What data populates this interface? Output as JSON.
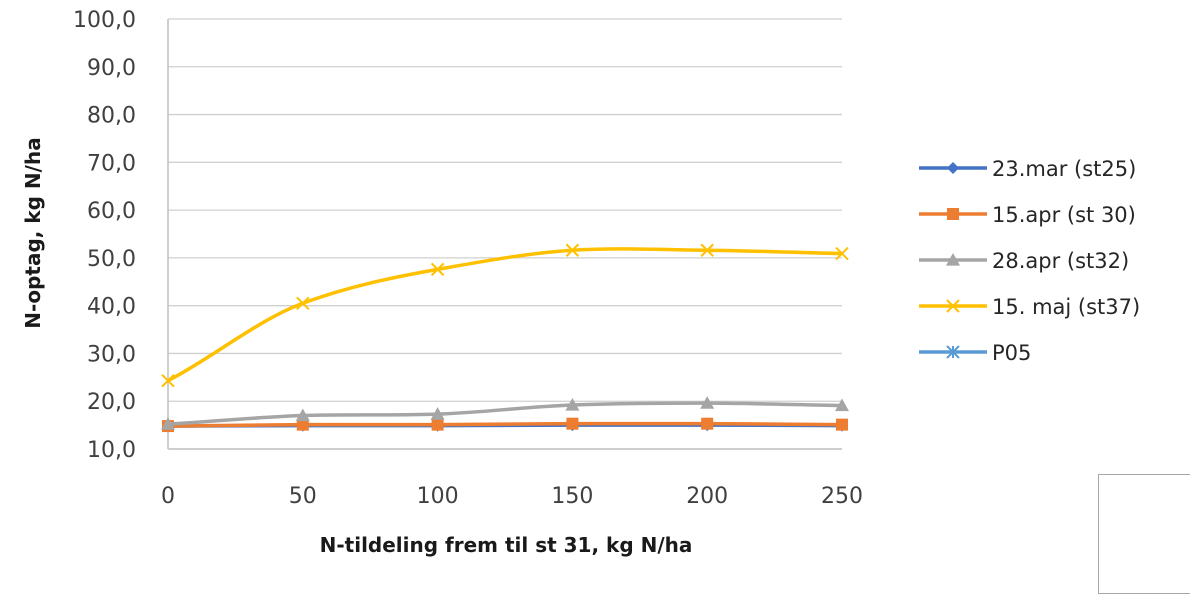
{
  "chart_data": {
    "type": "line",
    "title": "",
    "xlabel": "N-tildeling frem til st 31, kg N/ha",
    "ylabel": "N-optag, kg N/ha",
    "x": [
      0,
      50,
      100,
      150,
      200,
      250
    ],
    "x_tick_labels": [
      "0",
      "50",
      "100",
      "150",
      "200",
      "250"
    ],
    "ylim": [
      10,
      100
    ],
    "y_tick_labels": [
      "10,0",
      "20,0",
      "30,0",
      "40,0",
      "50,0",
      "60,0",
      "70,0",
      "80,0",
      "90,0",
      "100,0"
    ],
    "grid": "horizontal",
    "legend_position": "right",
    "series": [
      {
        "name": "23.mar (st25)",
        "color": "#4472c4",
        "marker": "diamond",
        "values": [
          14.8,
          14.9,
          14.9,
          15.0,
          15.0,
          14.9
        ]
      },
      {
        "name": "15.apr (st 30)",
        "color": "#ed7d31",
        "marker": "square",
        "values": [
          14.8,
          15.1,
          15.1,
          15.3,
          15.3,
          15.1
        ]
      },
      {
        "name": "28.apr (st32)",
        "color": "#a5a5a5",
        "marker": "triangle",
        "values": [
          15.2,
          17.0,
          17.3,
          19.2,
          19.6,
          19.1
        ]
      },
      {
        "name": "15. maj (st37)",
        "color": "#ffc000",
        "marker": "x",
        "values": [
          24.3,
          40.5,
          47.6,
          51.6,
          51.6,
          50.9
        ]
      },
      {
        "name": "P05",
        "color": "#5b9bd5",
        "marker": "star",
        "values": [
          null,
          null,
          null,
          null,
          null,
          null
        ]
      }
    ]
  }
}
